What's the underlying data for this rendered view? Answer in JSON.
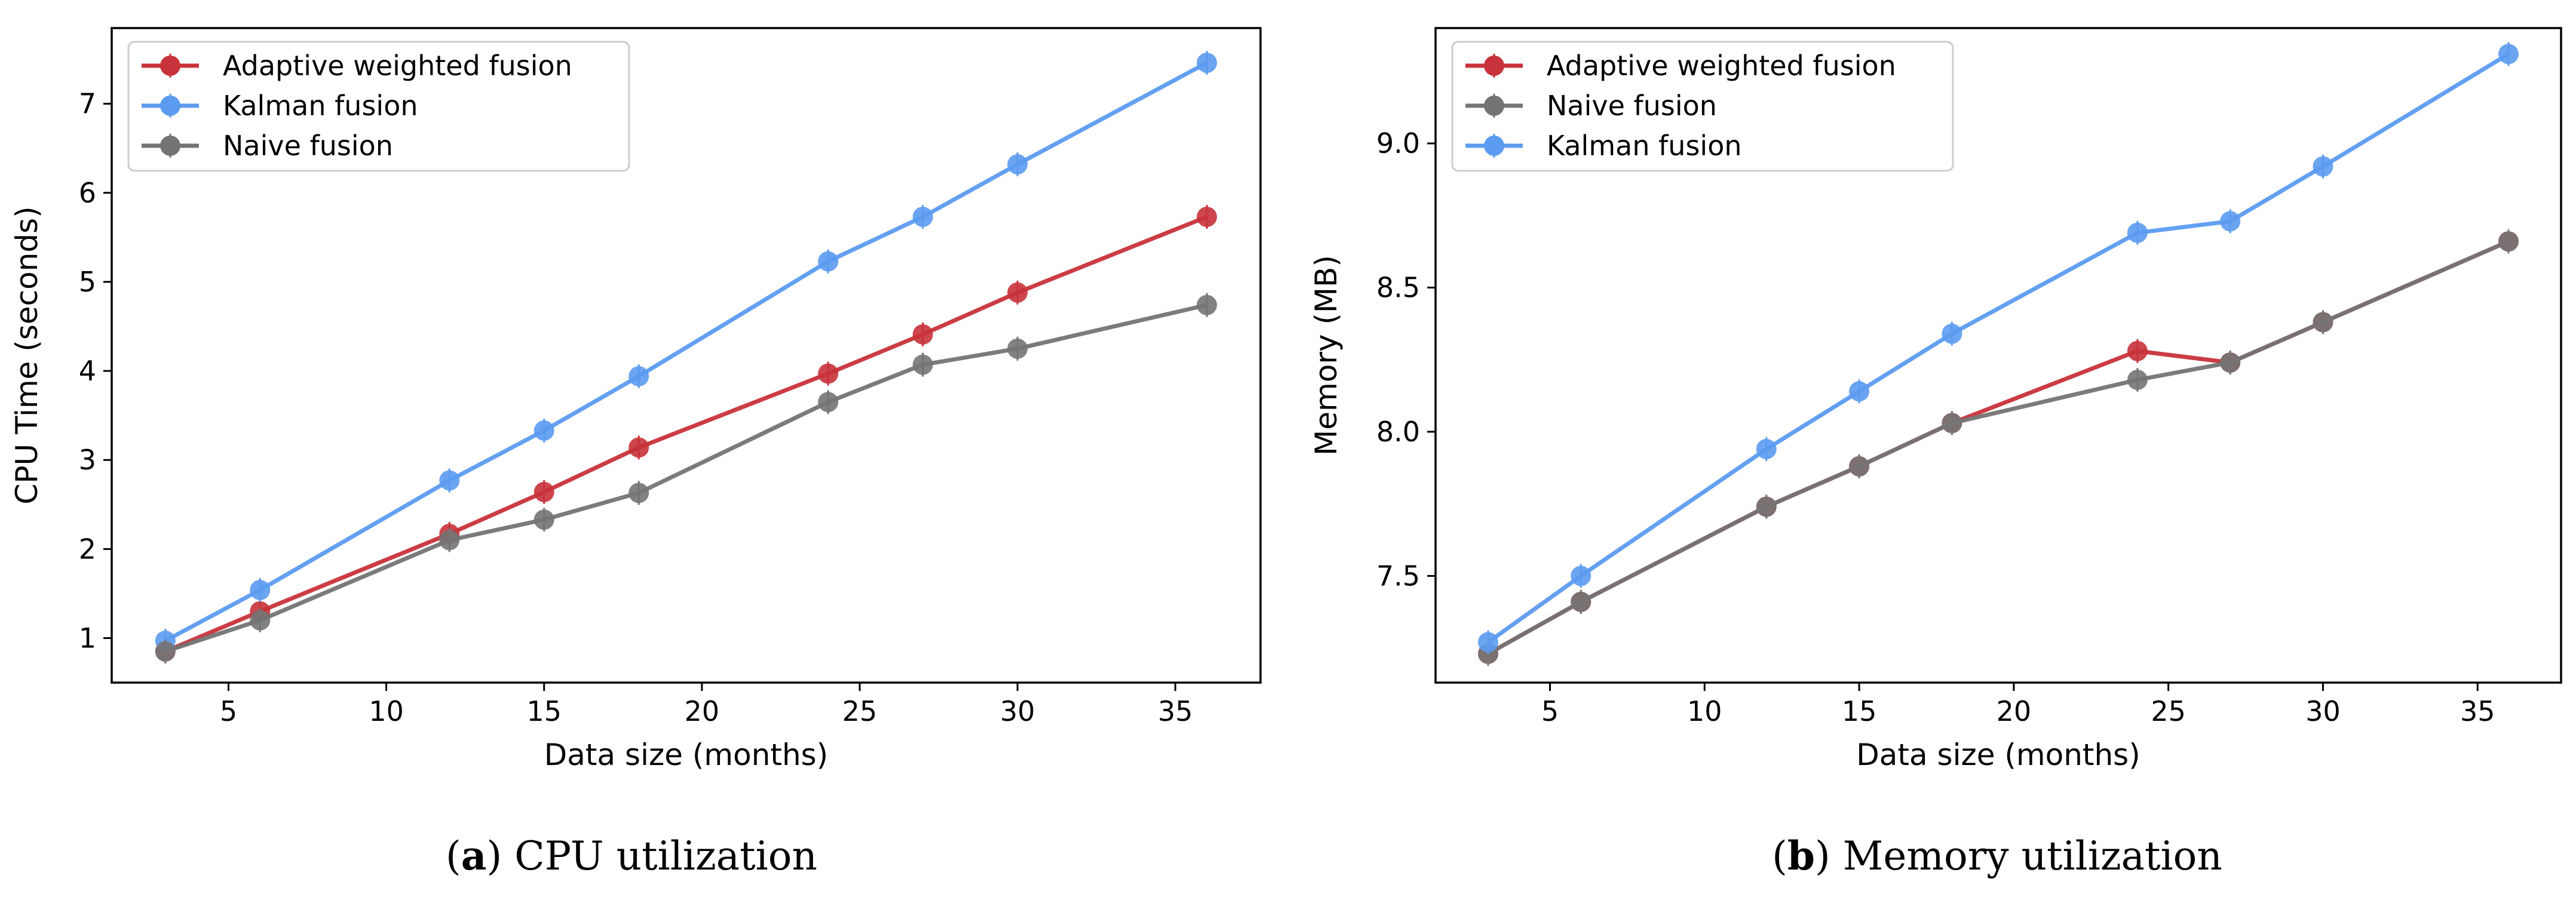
{
  "chart_data": [
    {
      "type": "line",
      "panel_letter": "a",
      "caption": "CPU utilization",
      "title": "",
      "xlabel": "Data size (months)",
      "ylabel": "CPU Time (seconds)",
      "xlim": [
        1.3,
        37.7
      ],
      "ylim": [
        0.5,
        7.85
      ],
      "xticks": [
        5,
        10,
        15,
        20,
        25,
        30,
        35
      ],
      "yticks": [
        1,
        2,
        3,
        4,
        5,
        6,
        7
      ],
      "x": [
        3,
        6,
        12,
        15,
        18,
        24,
        27,
        30,
        36
      ],
      "legend_position": "top-left",
      "series": [
        {
          "name": "Adaptive weighted fusion",
          "color": "#c8323a",
          "values": [
            0.85,
            1.3,
            2.17,
            2.64,
            3.14,
            3.97,
            4.41,
            4.88,
            5.73
          ]
        },
        {
          "name": "Kalman fusion",
          "color": "#5b9bf0",
          "values": [
            0.97,
            1.54,
            2.77,
            3.33,
            3.94,
            5.23,
            5.73,
            6.32,
            7.46
          ]
        },
        {
          "name": "Naive fusion",
          "color": "#747474",
          "values": [
            0.85,
            1.2,
            2.1,
            2.33,
            2.63,
            3.65,
            4.07,
            4.25,
            4.74
          ]
        }
      ]
    },
    {
      "type": "line",
      "panel_letter": "b",
      "caption": "Memory utilization",
      "title": "",
      "xlabel": "Data size (months)",
      "ylabel": "Memory (MB)",
      "xlim": [
        1.3,
        37.7
      ],
      "ylim": [
        7.13,
        9.4
      ],
      "xticks": [
        5,
        10,
        15,
        20,
        25,
        30,
        35
      ],
      "yticks": [
        7.5,
        8.0,
        8.5,
        9.0
      ],
      "ytick_labels": [
        "7.5",
        "8.0",
        "8.5",
        "9.0"
      ],
      "x": [
        3,
        6,
        12,
        15,
        18,
        24,
        27,
        30,
        36
      ],
      "legend_position": "top-left",
      "series": [
        {
          "name": "Adaptive weighted fusion",
          "color": "#c8323a",
          "values": [
            7.23,
            7.41,
            7.74,
            7.88,
            8.03,
            8.28,
            8.24,
            8.38,
            8.66
          ]
        },
        {
          "name": "Naive fusion",
          "color": "#747474",
          "values": [
            7.23,
            7.41,
            7.74,
            7.88,
            8.03,
            8.18,
            8.24,
            8.38,
            8.66
          ]
        },
        {
          "name": "Kalman fusion",
          "color": "#5b9bf0",
          "values": [
            7.27,
            7.5,
            7.94,
            8.14,
            8.34,
            8.69,
            8.73,
            8.92,
            9.31
          ]
        }
      ]
    }
  ]
}
